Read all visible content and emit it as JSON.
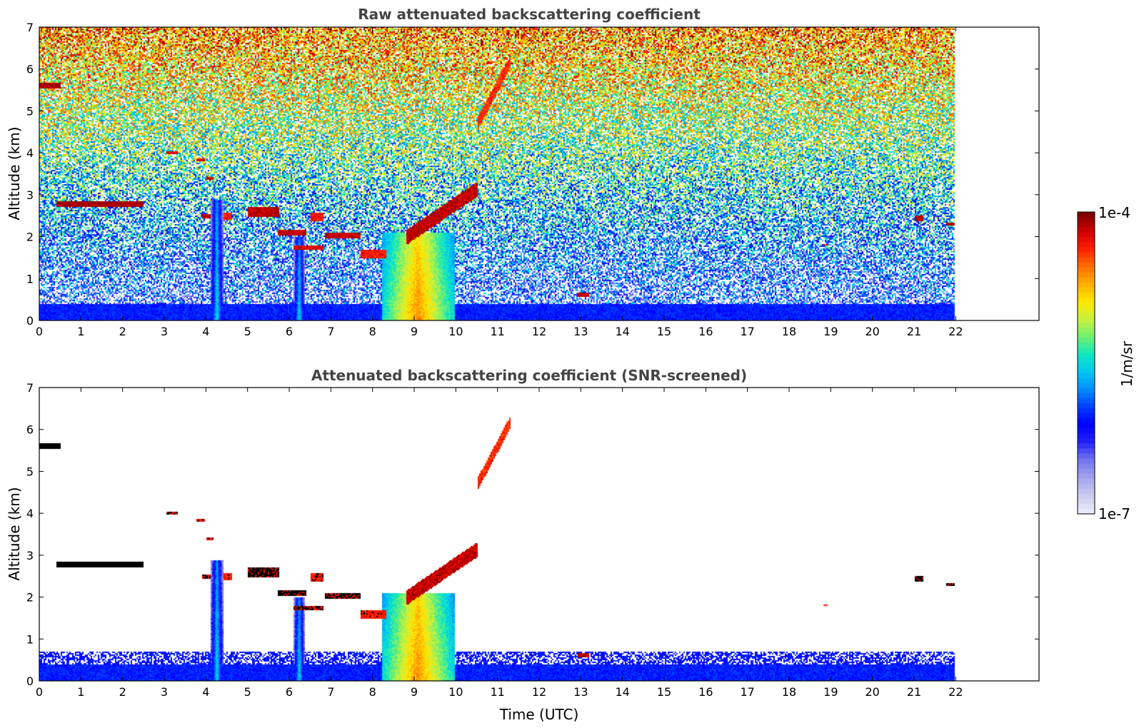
{
  "colors": {
    "colormap": [
      "#e8e8f8",
      "#c8c8f0",
      "#a0a0ee",
      "#7070f0",
      "#2020f8",
      "#0000ff",
      "#0040ff",
      "#0090ff",
      "#00c8f0",
      "#10e8c0",
      "#70f070",
      "#c8f040",
      "#ffe800",
      "#ffb000",
      "#ff7000",
      "#ff2000",
      "#d00000",
      "#800000"
    ],
    "cloud_screened": "#000000",
    "axes": "#000000",
    "title": "#444444"
  },
  "colorbar": {
    "label": "1/m/sr",
    "max_label": "1e-4",
    "min_label": "1e-7",
    "scale": "log",
    "range": [
      1e-07,
      0.0001
    ]
  },
  "chart_data": [
    {
      "type": "heatmap",
      "title": "Raw attenuated backscattering coefficient",
      "xlabel": "",
      "ylabel": "Altitude (km)",
      "xlim": [
        0,
        24
      ],
      "ylim": [
        0,
        7
      ],
      "x_ticks": [
        "0",
        "1",
        "2",
        "3",
        "4",
        "5",
        "6",
        "7",
        "8",
        "9",
        "10",
        "11",
        "12",
        "13",
        "14",
        "15",
        "16",
        "17",
        "18",
        "19",
        "20",
        "21",
        "22"
      ],
      "y_ticks": [
        "0",
        "1",
        "2",
        "3",
        "4",
        "5",
        "6",
        "7"
      ],
      "data_extent_hours": [
        0,
        21.95
      ],
      "features": [
        {
          "kind": "boundary_layer",
          "t_start": 0,
          "t_end": 21.95,
          "top_km": 0.4,
          "level": 0.32
        },
        {
          "kind": "layer",
          "t_start": 0.0,
          "t_end": 0.5,
          "alt_km": 5.62,
          "thickness_km": 0.14,
          "level": 0.97
        },
        {
          "kind": "layer",
          "t_start": 0.4,
          "t_end": 2.5,
          "alt_km": 2.79,
          "thickness_km": 0.14,
          "level": 0.97
        },
        {
          "kind": "layer",
          "t_start": 3.05,
          "t_end": 3.3,
          "alt_km": 4.02,
          "thickness_km": 0.06,
          "level": 0.92
        },
        {
          "kind": "layer",
          "t_start": 3.75,
          "t_end": 3.95,
          "alt_km": 3.85,
          "thickness_km": 0.06,
          "level": 0.92
        },
        {
          "kind": "layer",
          "t_start": 4.0,
          "t_end": 4.15,
          "alt_km": 3.4,
          "thickness_km": 0.08,
          "level": 0.92
        },
        {
          "kind": "layer",
          "t_start": 3.9,
          "t_end": 4.1,
          "alt_km": 2.5,
          "thickness_km": 0.12,
          "level": 0.95
        },
        {
          "kind": "layer",
          "t_start": 4.4,
          "t_end": 4.6,
          "alt_km": 2.5,
          "thickness_km": 0.15,
          "level": 0.9
        },
        {
          "kind": "layer",
          "t_start": 5.0,
          "t_end": 5.75,
          "alt_km": 2.6,
          "thickness_km": 0.25,
          "level": 0.95
        },
        {
          "kind": "layer",
          "t_start": 5.7,
          "t_end": 6.4,
          "alt_km": 2.12,
          "thickness_km": 0.14,
          "level": 0.95
        },
        {
          "kind": "layer",
          "t_start": 6.1,
          "t_end": 6.8,
          "alt_km": 1.75,
          "thickness_km": 0.1,
          "level": 0.93
        },
        {
          "kind": "layer",
          "t_start": 6.5,
          "t_end": 6.8,
          "alt_km": 2.5,
          "thickness_km": 0.2,
          "level": 0.9
        },
        {
          "kind": "layer",
          "t_start": 6.85,
          "t_end": 7.7,
          "alt_km": 2.05,
          "thickness_km": 0.12,
          "level": 0.95
        },
        {
          "kind": "layer",
          "t_start": 7.7,
          "t_end": 8.3,
          "alt_km": 1.6,
          "thickness_km": 0.2,
          "level": 0.9
        },
        {
          "kind": "column",
          "t_start": 4.1,
          "t_end": 4.4,
          "top_km": 2.9,
          "level": 0.5
        },
        {
          "kind": "column",
          "t_start": 6.1,
          "t_end": 6.35,
          "top_km": 2.0,
          "level": 0.5
        },
        {
          "kind": "column",
          "t_start": 8.2,
          "t_end": 9.95,
          "top_km": 2.1,
          "level": 0.8
        },
        {
          "kind": "rising_layer",
          "t_start": 8.8,
          "t_end": 10.5,
          "alt_start_km": 2.0,
          "alt_end_km": 3.15,
          "thickness_km": 0.35,
          "level": 0.95
        },
        {
          "kind": "rising_layer",
          "t_start": 10.5,
          "t_end": 11.3,
          "alt_start_km": 4.7,
          "alt_end_km": 6.2,
          "thickness_km": 0.3,
          "level": 0.88
        },
        {
          "kind": "layer",
          "t_start": 12.9,
          "t_end": 13.2,
          "alt_km": 0.62,
          "thickness_km": 0.1,
          "level": 0.95
        },
        {
          "kind": "layer",
          "t_start": 18.8,
          "t_end": 18.9,
          "alt_km": 1.82,
          "thickness_km": 0.06,
          "level": 0.9
        },
        {
          "kind": "layer",
          "t_start": 21.0,
          "t_end": 21.2,
          "alt_km": 2.45,
          "thickness_km": 0.15,
          "level": 0.95
        },
        {
          "kind": "layer",
          "t_start": 21.75,
          "t_end": 21.95,
          "alt_km": 2.32,
          "thickness_km": 0.08,
          "level": 0.95
        }
      ]
    },
    {
      "type": "heatmap",
      "title": "Attenuated backscattering coefficient (SNR-screened)",
      "xlabel": "Time (UTC)",
      "ylabel": "Altitude (km)",
      "xlim": [
        0,
        24
      ],
      "ylim": [
        0,
        7
      ],
      "x_ticks": [
        "0",
        "1",
        "2",
        "3",
        "4",
        "5",
        "6",
        "7",
        "8",
        "9",
        "10",
        "11",
        "12",
        "13",
        "14",
        "15",
        "16",
        "17",
        "18",
        "19",
        "20",
        "21",
        "22"
      ],
      "y_ticks": [
        "0",
        "1",
        "2",
        "3",
        "4",
        "5",
        "6",
        "7"
      ],
      "data_extent_hours": [
        0,
        21.95
      ],
      "cloud_layers_shown_black": true
    }
  ]
}
